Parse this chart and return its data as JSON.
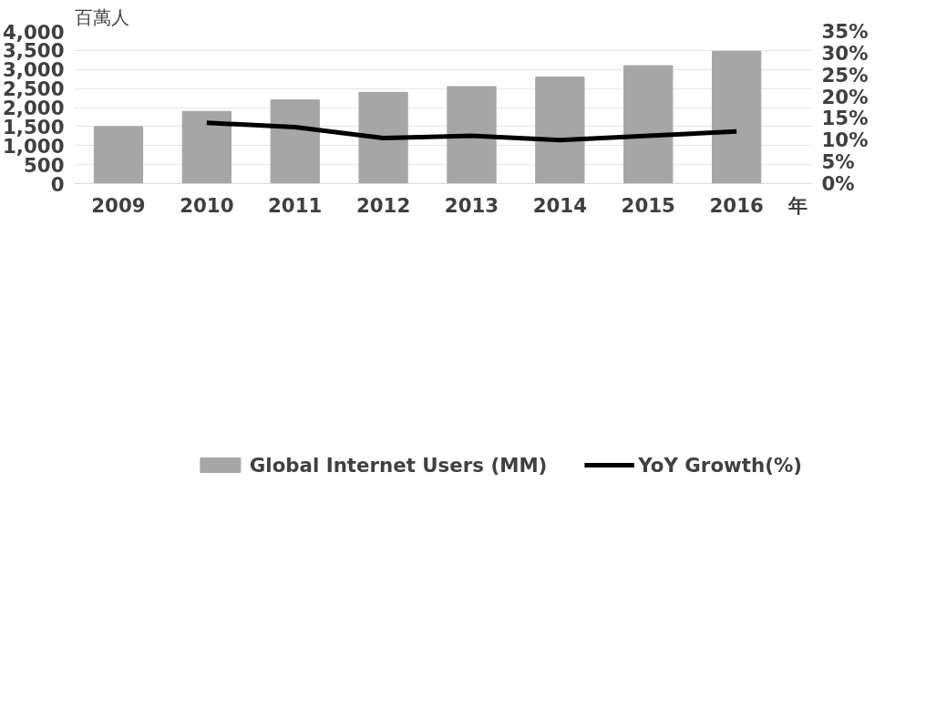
{
  "chart_data": {
    "type": "bar",
    "ylabel": "百萬人",
    "xlabel": "年",
    "categories": [
      "2009",
      "2010",
      "2011",
      "2012",
      "2013",
      "2014",
      "2015",
      "2016"
    ],
    "series": [
      {
        "name": "Global Internet Users (MM)",
        "color": "#a6a6a6",
        "values": [
          1500,
          1900,
          2200,
          2400,
          2550,
          2800,
          3100,
          3480
        ]
      },
      {
        "name": "YoY Growth(%)",
        "type": "line",
        "axis": "y2",
        "color": "#000000",
        "values": [
          null,
          14,
          13,
          10.5,
          11,
          10,
          11,
          12
        ]
      }
    ],
    "ylim": [
      0,
      4000
    ],
    "yticks": [
      {
        "value": 0,
        "label": "0"
      },
      {
        "value": 500,
        "label": "500"
      },
      {
        "value": 1000,
        "label": "1,000"
      },
      {
        "value": 1500,
        "label": "1,500"
      },
      {
        "value": 2000,
        "label": "2,000"
      },
      {
        "value": 2500,
        "label": "2,500"
      },
      {
        "value": 3000,
        "label": "3,000"
      },
      {
        "value": 3500,
        "label": "3,500"
      },
      {
        "value": 4000,
        "label": "4,000"
      }
    ],
    "y2lim": [
      0,
      35
    ],
    "y2ticks": [
      {
        "value": 0,
        "label": "0%"
      },
      {
        "value": 5,
        "label": "5%"
      },
      {
        "value": 10,
        "label": "10%"
      },
      {
        "value": 15,
        "label": "15%"
      },
      {
        "value": 20,
        "label": "20%"
      },
      {
        "value": 25,
        "label": "25%"
      },
      {
        "value": 30,
        "label": "30%"
      },
      {
        "value": 35,
        "label": "35%"
      }
    ],
    "grid": "y",
    "legend": "bottom",
    "marker": "none",
    "line_style": "solid"
  }
}
